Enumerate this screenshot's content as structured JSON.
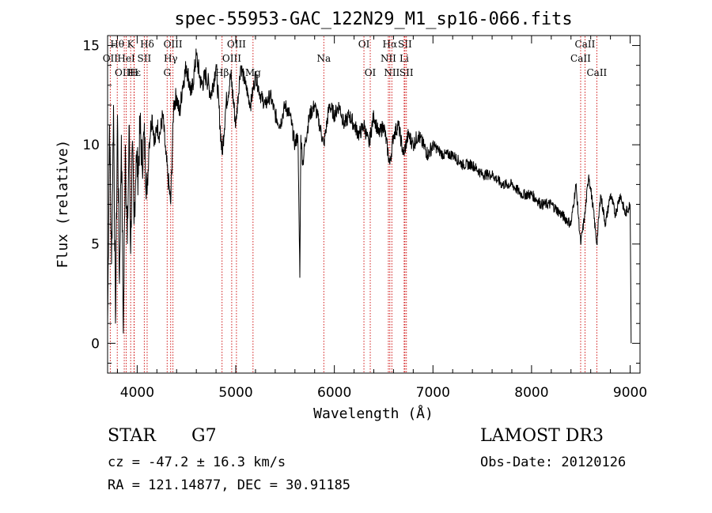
{
  "chart_data": {
    "type": "line",
    "title": "spec-55953-GAC_122N29_M1_sp16-066.fits",
    "xlabel": "Wavelength (Å)",
    "ylabel": "Flux (relative)",
    "xlim": [
      3700,
      9100
    ],
    "ylim": [
      -1.5,
      15.5
    ],
    "xticks": [
      4000,
      5000,
      6000,
      7000,
      8000,
      9000
    ],
    "yticks": [
      0,
      5,
      10,
      15
    ],
    "grid": false,
    "series": [
      {
        "name": "spectrum",
        "x": [
          3700,
          3720,
          3740,
          3760,
          3780,
          3800,
          3820,
          3840,
          3860,
          3880,
          3900,
          3920,
          3934,
          3950,
          3968,
          3990,
          4010,
          4030,
          4050,
          4070,
          4101,
          4120,
          4150,
          4180,
          4200,
          4230,
          4260,
          4290,
          4310,
          4340,
          4370,
          4400,
          4430,
          4460,
          4500,
          4550,
          4600,
          4650,
          4700,
          4750,
          4800,
          4861,
          4900,
          4950,
          5000,
          5050,
          5100,
          5150,
          5200,
          5250,
          5300,
          5350,
          5400,
          5450,
          5500,
          5550,
          5600,
          5630,
          5650,
          5660,
          5680,
          5700,
          5750,
          5800,
          5850,
          5893,
          5950,
          6000,
          6050,
          6100,
          6150,
          6200,
          6250,
          6300,
          6350,
          6400,
          6450,
          6500,
          6563,
          6600,
          6650,
          6700,
          6750,
          6800,
          6850,
          6900,
          6950,
          7000,
          7100,
          7200,
          7300,
          7400,
          7500,
          7600,
          7700,
          7800,
          7900,
          8000,
          8100,
          8200,
          8300,
          8400,
          8450,
          8498,
          8542,
          8580,
          8620,
          8662,
          8700,
          8750,
          8800,
          8850,
          8900,
          8950,
          9000,
          9010
        ],
        "values": [
          1.0,
          11.0,
          4.0,
          12.0,
          1.0,
          11.5,
          3.0,
          10.5,
          0.5,
          10.0,
          5.0,
          11.0,
          4.5,
          10.0,
          6.0,
          9.5,
          8.5,
          11.0,
          9.0,
          10.5,
          7.5,
          10.0,
          11.5,
          10.0,
          11.0,
          10.5,
          11.5,
          9.5,
          8.5,
          7.0,
          12.0,
          12.5,
          11.5,
          13.0,
          14.0,
          12.5,
          14.5,
          13.0,
          13.5,
          12.5,
          14.0,
          9.5,
          12.0,
          13.5,
          11.0,
          14.0,
          13.0,
          12.0,
          13.5,
          12.5,
          12.0,
          12.5,
          11.5,
          11.0,
          12.0,
          11.5,
          10.0,
          10.5,
          3.3,
          10.5,
          9.0,
          10.0,
          11.5,
          12.0,
          11.0,
          10.0,
          12.0,
          11.5,
          12.0,
          11.0,
          11.5,
          11.0,
          10.5,
          11.0,
          10.0,
          11.5,
          10.5,
          11.0,
          9.0,
          10.5,
          11.0,
          9.5,
          10.5,
          10.0,
          10.5,
          10.0,
          9.5,
          10.0,
          9.5,
          9.5,
          9.0,
          9.0,
          8.5,
          8.5,
          8.0,
          8.0,
          7.5,
          7.5,
          7.0,
          7.0,
          6.5,
          6.0,
          8.0,
          5.0,
          6.5,
          8.5,
          7.0,
          5.0,
          7.5,
          6.0,
          7.5,
          6.5,
          7.5,
          6.5,
          7.0,
          0.0
        ]
      }
    ],
    "line_markers": [
      {
        "label": "Hθ",
        "x": 3798,
        "row": 0
      },
      {
        "label": "OII",
        "x": 3727,
        "row": 1
      },
      {
        "label": "OIII",
        "x": 3869,
        "row": 2
      },
      {
        "label": "K",
        "x": 3934,
        "row": 0
      },
      {
        "label": "HeI",
        "x": 3889,
        "row": 1
      },
      {
        "label": "Hε",
        "x": 3970,
        "row": 2
      },
      {
        "label": "H",
        "x": 3968,
        "row": 3
      },
      {
        "label": "Hδ",
        "x": 4101,
        "row": 0
      },
      {
        "label": "SII",
        "x": 4072,
        "row": 1
      },
      {
        "label": "OIII",
        "x": 4363,
        "row": 0
      },
      {
        "label": "Hγ",
        "x": 4340,
        "row": 1
      },
      {
        "label": "G",
        "x": 4304,
        "row": 2
      },
      {
        "label": "Hβ",
        "x": 4861,
        "row": 2
      },
      {
        "label": "OIII",
        "x": 5007,
        "row": 0
      },
      {
        "label": "OIII",
        "x": 4959,
        "row": 1
      },
      {
        "label": "Mg",
        "x": 5175,
        "row": 2
      },
      {
        "label": "Na",
        "x": 5893,
        "row": 1
      },
      {
        "label": "OI",
        "x": 6300,
        "row": 0
      },
      {
        "label": "OI",
        "x": 6364,
        "row": 2
      },
      {
        "label": "Hα",
        "x": 6563,
        "row": 0
      },
      {
        "label": "NII",
        "x": 6548,
        "row": 1
      },
      {
        "label": "NII",
        "x": 6583,
        "row": 2
      },
      {
        "label": "SII",
        "x": 6716,
        "row": 0
      },
      {
        "label": "Li",
        "x": 6708,
        "row": 1
      },
      {
        "label": "SII",
        "x": 6731,
        "row": 2
      },
      {
        "label": "CaII",
        "x": 8542,
        "row": 0
      },
      {
        "label": "CaII",
        "x": 8498,
        "row": 1
      },
      {
        "label": "CaII",
        "x": 8662,
        "row": 2
      }
    ]
  },
  "info": {
    "object_type": "STAR",
    "subclass": "G7",
    "cz": "cz = -47.2 ± 16.3 km/s",
    "coords": "RA = 121.14877, DEC =  30.91185",
    "survey": "LAMOST DR3",
    "obs_date": "Obs-Date: 20120126"
  },
  "colors": {
    "line": "#000000",
    "marker": "#cc0000",
    "axes": "#000000"
  }
}
